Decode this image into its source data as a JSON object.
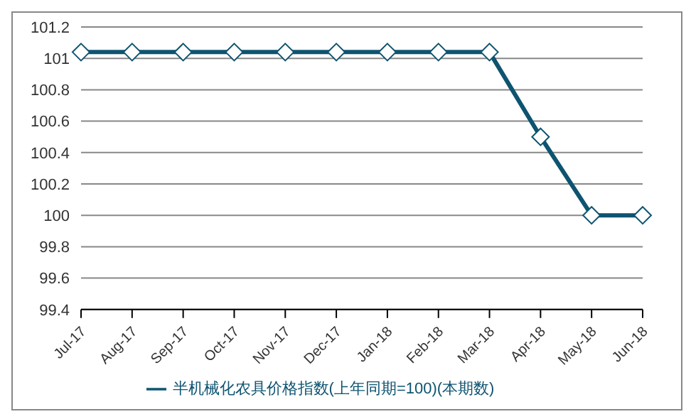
{
  "chart_data": {
    "type": "line",
    "categories": [
      "Jul-17",
      "Aug-17",
      "Sep-17",
      "Oct-17",
      "Nov-17",
      "Dec-17",
      "Jan-18",
      "Feb-18",
      "Mar-18",
      "Apr-18",
      "May-18",
      "Jun-18"
    ],
    "series": [
      {
        "name": "半机械化农具价格指数(上年同期=100)(本期数)",
        "color": "#0e5470",
        "values": [
          101.04,
          101.04,
          101.04,
          101.04,
          101.04,
          101.04,
          101.04,
          101.04,
          101.04,
          100.5,
          100,
          100
        ]
      }
    ],
    "ylim": [
      99.4,
      101.2
    ],
    "yticks": [
      99.4,
      99.6,
      99.8,
      100,
      100.2,
      100.4,
      100.6,
      100.8,
      101,
      101.2
    ],
    "grid": "y",
    "legend": "bottom",
    "marker": "diamond",
    "line_style": "solid"
  }
}
